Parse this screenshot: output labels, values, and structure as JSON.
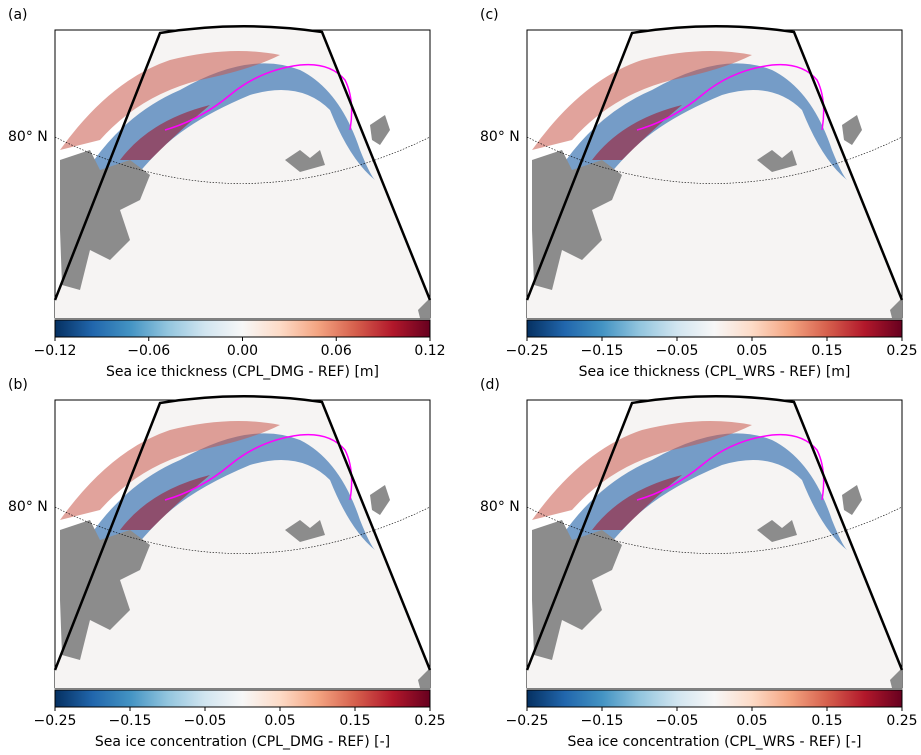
{
  "panels": [
    {
      "label": "(a)",
      "lat_label": "80° N",
      "colorbar": {
        "label": "Sea ice thickness (CPL_DMG - REF) [m]",
        "lim": [
          -0.12,
          0.12
        ],
        "ticks": [
          {
            "value": -0.12,
            "label": "−0.12"
          },
          {
            "value": -0.06,
            "label": "−0.06"
          },
          {
            "value": 0,
            "label": "0.00"
          },
          0.06,
          0.12
        ]
      }
    },
    {
      "label": "(c)",
      "lat_label": "80° N",
      "colorbar": {
        "label": "Sea ice thickness (CPL_WRS - REF) [m]",
        "lim": [
          -0.25,
          0.25
        ],
        "ticks": [
          {
            "value": -0.25,
            "label": "−0.25"
          },
          {
            "value": -0.15,
            "label": "−0.15"
          },
          {
            "value": -0.05,
            "label": "−0.05"
          },
          0.05,
          0.15,
          0.25
        ]
      }
    },
    {
      "label": "(b)",
      "lat_label": "80° N",
      "colorbar": {
        "label": "Sea ice concentration (CPL_DMG - REF) [-]",
        "lim": [
          -0.25,
          0.25
        ],
        "ticks": [
          {
            "value": -0.25,
            "label": "−0.25"
          },
          {
            "value": -0.15,
            "label": "−0.15"
          },
          {
            "value": -0.05,
            "label": "−0.05"
          },
          0.05,
          0.15,
          0.25
        ]
      }
    },
    {
      "label": "(d)",
      "lat_label": "80° N",
      "colorbar": {
        "label": "Sea ice concentration (CPL_WRS - REF) [-]",
        "lim": [
          -0.25,
          0.25
        ],
        "ticks": [
          {
            "value": -0.25,
            "label": "−0.25"
          },
          {
            "value": -0.15,
            "label": "−0.15"
          },
          {
            "value": -0.05,
            "label": "−0.05"
          },
          0.05,
          0.15,
          0.25
        ]
      }
    }
  ]
}
